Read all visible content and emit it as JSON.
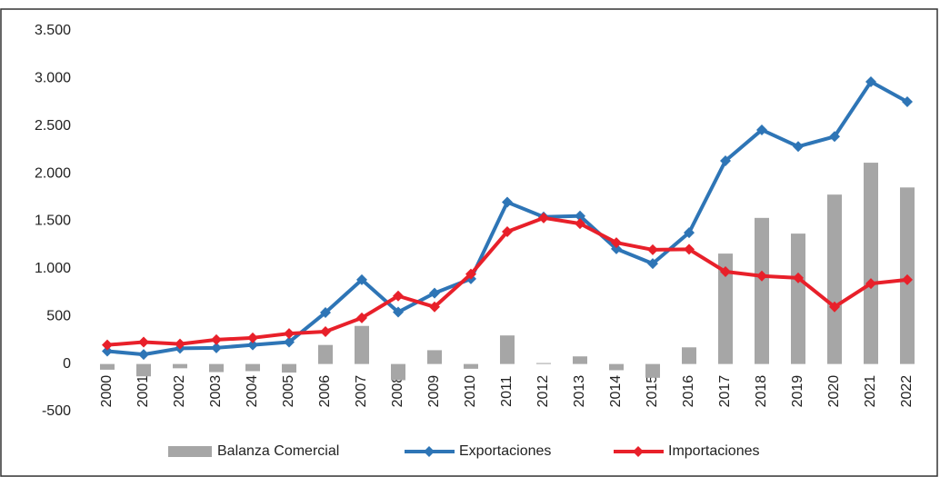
{
  "chart_data": {
    "type": "bar-line",
    "categories": [
      "2000",
      "2001",
      "2002",
      "2003",
      "2004",
      "2005",
      "2006",
      "2007",
      "2008",
      "2009",
      "2010",
      "2011",
      "2012",
      "2013",
      "2014",
      "2015",
      "2016",
      "2017",
      "2018",
      "2019",
      "2020",
      "2021",
      "2022"
    ],
    "series": [
      {
        "name": "Balanza Comercial",
        "type": "bar",
        "color": "#a6a6a6",
        "values": [
          -60,
          -130,
          -45,
          -85,
          -75,
          -90,
          200,
          400,
          -170,
          145,
          -50,
          300,
          10,
          80,
          -65,
          -145,
          175,
          1160,
          1535,
          1370,
          1780,
          2115,
          1855
        ]
      },
      {
        "name": "Exportaciones",
        "type": "line",
        "color": "#2e75b6",
        "values": [
          135,
          100,
          165,
          170,
          200,
          230,
          540,
          885,
          545,
          745,
          895,
          1700,
          1545,
          1555,
          1210,
          1055,
          1380,
          2135,
          2460,
          2285,
          2390,
          2965,
          2755
        ]
      },
      {
        "name": "Importaciones",
        "type": "line",
        "color": "#e8202a",
        "values": [
          200,
          230,
          210,
          255,
          275,
          320,
          340,
          485,
          715,
          600,
          945,
          1390,
          1535,
          1475,
          1275,
          1200,
          1205,
          970,
          925,
          905,
          600,
          845,
          885
        ]
      }
    ],
    "ylim": [
      -500,
      3500
    ],
    "yticks": [
      -500,
      0,
      500,
      {
        "value": 1000,
        "label": "1.000"
      },
      {
        "value": 1500,
        "label": "1.500"
      },
      {
        "value": 2000,
        "label": "2.000"
      },
      {
        "value": 2500,
        "label": "2.500"
      },
      {
        "value": 3000,
        "label": "3.000"
      },
      {
        "value": 3500,
        "label": "3.500"
      }
    ],
    "grid": false,
    "legend": "bottom"
  }
}
